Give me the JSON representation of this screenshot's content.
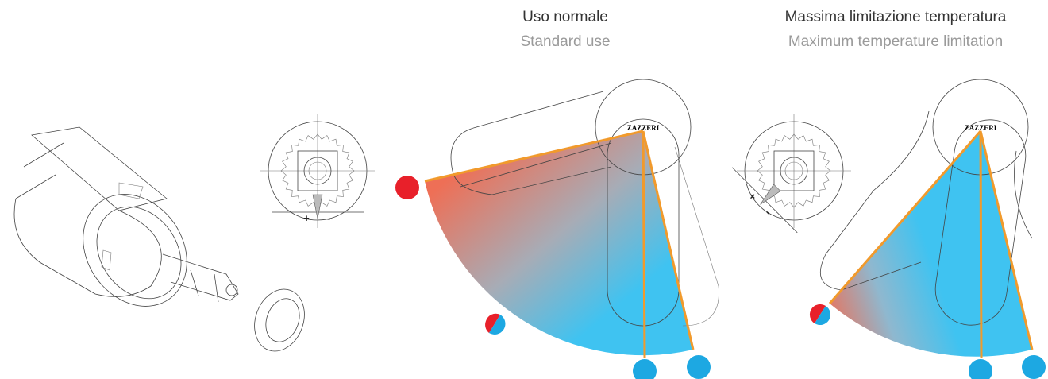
{
  "panels": [
    {
      "title": "Uso normale",
      "subtitle": "Standard use",
      "brand": "ZAZZERI"
    },
    {
      "title": "Massima limitazione temperatura",
      "subtitle": "Maximum temperature limitation",
      "brand": "ZAZZERI"
    }
  ],
  "dials": [
    {
      "plus": "+",
      "minus": "-"
    },
    {
      "plus": "+",
      "minus": "-"
    }
  ]
}
